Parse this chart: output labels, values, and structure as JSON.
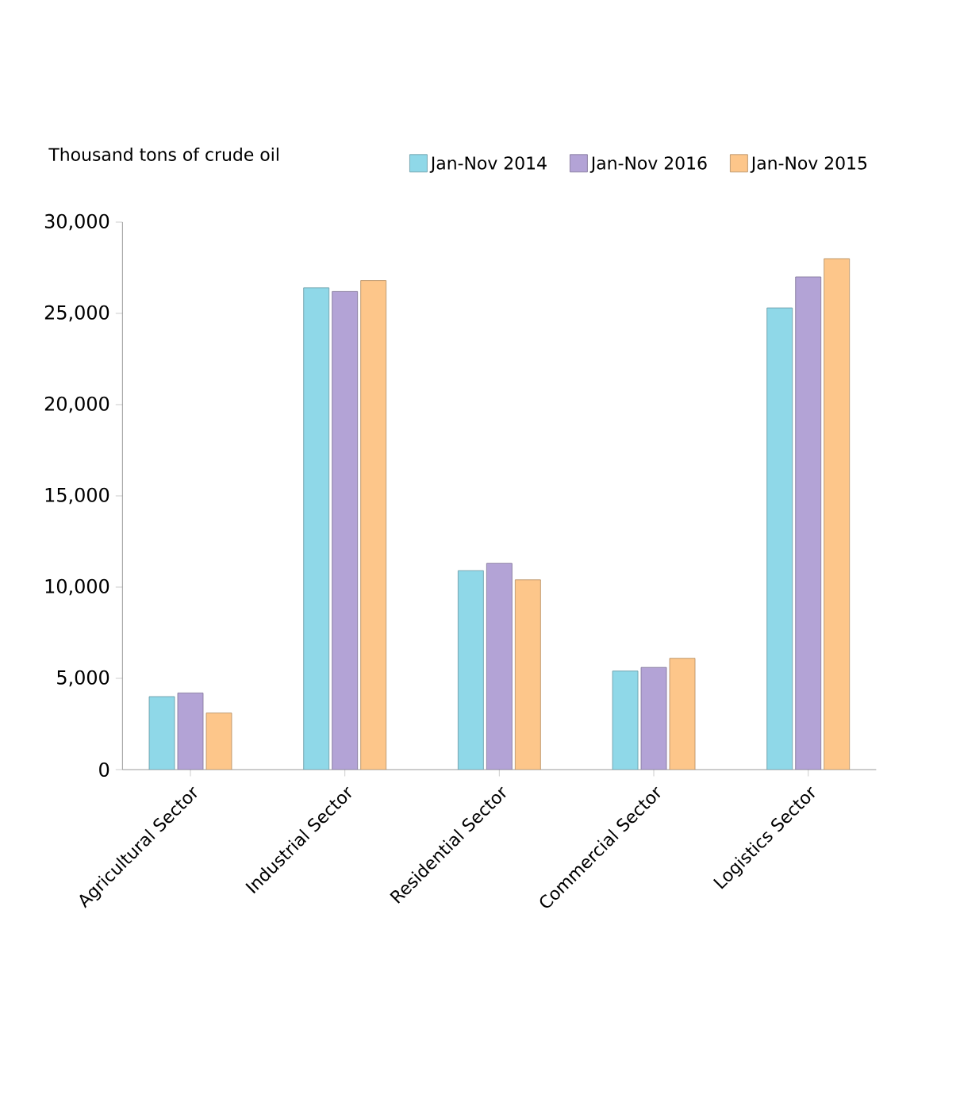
{
  "chart_data": {
    "type": "bar",
    "ylabel": "Thousand tons of crude oil",
    "categories": [
      "Agricultural Sector",
      "Industrial Sector",
      "Residential Sector",
      "Commercial Sector",
      "Logistics Sector"
    ],
    "series": [
      {
        "name": "Jan-Nov 2014",
        "color": "#8fd8e8",
        "values": [
          4000,
          26400,
          10900,
          5400,
          25300
        ]
      },
      {
        "name": "Jan-Nov 2016",
        "color": "#b3a3d6",
        "values": [
          4200,
          26200,
          11300,
          5600,
          27000
        ]
      },
      {
        "name": "Jan-Nov 2015",
        "color": "#fdc68a",
        "values": [
          3100,
          26800,
          10400,
          6100,
          28000
        ]
      }
    ],
    "ylim": [
      0,
      30000
    ],
    "yticks": [
      0,
      {
        "value": 5000,
        "label": "5,000"
      },
      {
        "value": 10000,
        "label": "10,000"
      },
      {
        "value": 15000,
        "label": "15,000"
      },
      {
        "value": 20000,
        "label": "20,000"
      },
      {
        "value": 25000,
        "label": "25,000"
      },
      {
        "value": 30000,
        "label": "30,000"
      }
    ],
    "legend": "top right",
    "grid": false
  }
}
